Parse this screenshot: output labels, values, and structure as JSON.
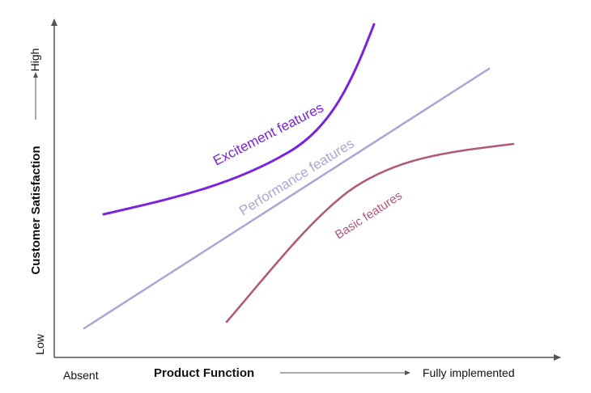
{
  "y_axis": {
    "label": "Customer Satisfaction",
    "high": "High",
    "low": "Low"
  },
  "x_axis": {
    "label": "Product Function",
    "start": "Absent",
    "end": "Fully implemented"
  },
  "curves": {
    "excitement": {
      "label": "Excitement features",
      "color": "#7b22e0"
    },
    "performance": {
      "label": "Performance features",
      "color": "#a9a6d6"
    },
    "basic": {
      "label": "Basic features",
      "color": "#b2567a"
    }
  },
  "axis_color": "#555555"
}
